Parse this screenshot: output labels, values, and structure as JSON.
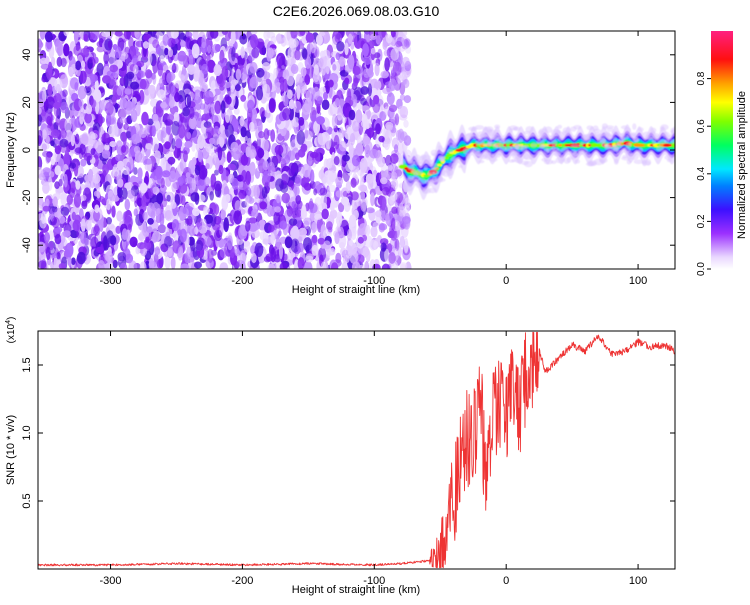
{
  "figure": {
    "title": "C2E6.2026.069.08.03.G10"
  },
  "chart_data": [
    {
      "type": "heatmap",
      "title": "",
      "xlabel": "Height of straight line (km)",
      "ylabel": "Frequency (Hz)",
      "xlim": [
        -355,
        128
      ],
      "ylim": [
        -50,
        50
      ],
      "xticks": [
        -300,
        -200,
        -100,
        0,
        100
      ],
      "yticks": [
        -40,
        -20,
        0,
        20,
        40
      ],
      "colorbar": {
        "label": "Normalized spectral amplitude",
        "range": [
          0,
          1
        ],
        "ticks": [
          0.0,
          0.2,
          0.4,
          0.6,
          0.8
        ],
        "tick_labels": [
          "0.0",
          "0.2",
          "0.4",
          "0.6",
          "0.8"
        ],
        "colormap": "rainbow (white-violet-blue-cyan-green-yellow-red-magenta)"
      },
      "noise_region_x": [
        -355,
        -74
      ],
      "signal_track": {
        "x": [
          -78,
          -72,
          -66,
          -60,
          -55,
          -50,
          -45,
          -40,
          -35,
          -30,
          -25,
          -20,
          -15,
          -10,
          -5,
          0,
          10,
          20,
          30,
          40,
          50,
          60,
          70,
          80,
          90,
          100,
          110,
          120,
          128
        ],
        "y": [
          -7,
          -9,
          -10,
          -11,
          -9,
          -6,
          -3,
          -1,
          0,
          1,
          2,
          2,
          2,
          2,
          2,
          2,
          2,
          2,
          2,
          2,
          2,
          2,
          2,
          2,
          3,
          2,
          2,
          2,
          2
        ]
      }
    },
    {
      "type": "line",
      "title": "",
      "xlabel": "Height of straight line (km)",
      "ylabel": "SNR (10 * v/v)",
      "y_multiplier_label": "(x10",
      "y_multiplier_exp": "4",
      "y_multiplier_close": ")",
      "xlim": [
        -355,
        128
      ],
      "ylim": [
        0,
        1.75
      ],
      "xticks": [
        -300,
        -200,
        -100,
        0,
        100
      ],
      "yticks": [
        0.5,
        1.0,
        1.5
      ],
      "ytick_labels": [
        "0.5",
        "1.0",
        "1.5"
      ],
      "color": "#ee3333",
      "series": [
        {
          "x": [
            -355,
            -300,
            -250,
            -200,
            -150,
            -100,
            -80,
            -60,
            -50,
            -45,
            -40,
            -35,
            -30,
            -25,
            -20,
            -15,
            -10,
            -5,
            0,
            5,
            10,
            15,
            20,
            25,
            30,
            40,
            50,
            60,
            70,
            80,
            90,
            100,
            110,
            120,
            128
          ],
          "y": [
            0.03,
            0.03,
            0.04,
            0.03,
            0.04,
            0.03,
            0.04,
            0.06,
            0.12,
            0.35,
            0.5,
            0.8,
            1.0,
            0.9,
            1.3,
            0.6,
            1.1,
            1.2,
            1.1,
            1.3,
            1.2,
            1.4,
            1.55,
            1.6,
            1.45,
            1.55,
            1.65,
            1.6,
            1.72,
            1.58,
            1.6,
            1.67,
            1.63,
            1.65,
            1.6
          ]
        }
      ]
    }
  ],
  "colors": {
    "snr_line": "#ee3333",
    "axis": "#000000",
    "background": "#ffffff"
  }
}
